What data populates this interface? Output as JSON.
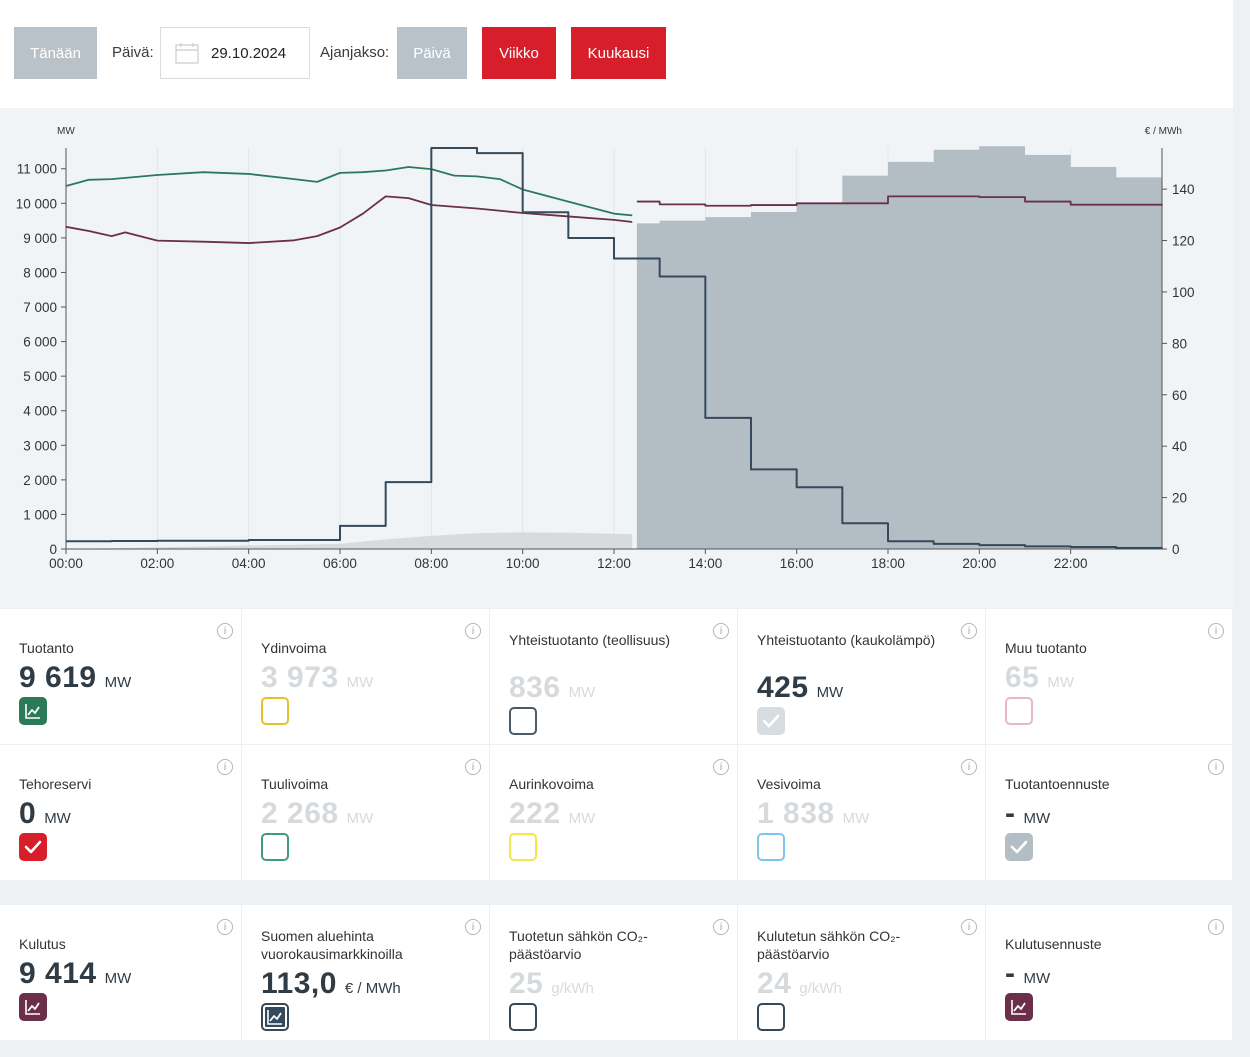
{
  "toolbar": {
    "today_label": "Tänään",
    "day_label": "Päivä:",
    "date_value": "29.10.2024",
    "period_label": "Ajanjakso:",
    "period_day": "Päivä",
    "period_week": "Viikko",
    "period_month": "Kuukausi"
  },
  "chart_data": {
    "type": "line",
    "left_unit": "MW",
    "right_unit": "€ / MWh",
    "x_ticks": [
      "00:00",
      "02:00",
      "04:00",
      "06:00",
      "08:00",
      "10:00",
      "12:00",
      "14:00",
      "16:00",
      "18:00",
      "20:00",
      "22:00"
    ],
    "y_left_ticks": [
      "0",
      "1 000",
      "2 000",
      "3 000",
      "4 000",
      "5 000",
      "6 000",
      "7 000",
      "8 000",
      "9 000",
      "10 000",
      "11 000"
    ],
    "y_right_ticks": [
      "0",
      "20",
      "40",
      "60",
      "80",
      "100",
      "120",
      "140"
    ],
    "y_left_range": [
      0,
      11600
    ],
    "y_right_range": [
      0,
      156
    ],
    "colors": {
      "production": "#2a7a5a",
      "consumption": "#6b2f4a",
      "price": "#34495a",
      "forecast_fill": "#b3bdc4",
      "solar_fill": "#d7dbde"
    },
    "series": [
      {
        "name": "Tuotanto",
        "unit": "MW",
        "values": [
          [
            0,
            10500
          ],
          [
            0.5,
            10680
          ],
          [
            1,
            10700
          ],
          [
            2,
            10820
          ],
          [
            3,
            10900
          ],
          [
            4,
            10850
          ],
          [
            5,
            10700
          ],
          [
            5.5,
            10620
          ],
          [
            6,
            10880
          ],
          [
            6.5,
            10900
          ],
          [
            7,
            10950
          ],
          [
            7.5,
            11050
          ],
          [
            8,
            10990
          ],
          [
            8.5,
            10800
          ],
          [
            9,
            10780
          ],
          [
            9.5,
            10700
          ],
          [
            10,
            10400
          ],
          [
            11,
            10050
          ],
          [
            12,
            9700
          ],
          [
            12.4,
            9650
          ]
        ]
      },
      {
        "name": "Kulutus",
        "unit": "MW",
        "values": [
          [
            0,
            9320
          ],
          [
            0.5,
            9200
          ],
          [
            1,
            9050
          ],
          [
            1.3,
            9160
          ],
          [
            2,
            8920
          ],
          [
            3,
            8890
          ],
          [
            4,
            8850
          ],
          [
            5,
            8930
          ],
          [
            5.5,
            9050
          ],
          [
            6,
            9300
          ],
          [
            6.5,
            9700
          ],
          [
            7,
            10200
          ],
          [
            7.5,
            10150
          ],
          [
            8,
            9950
          ],
          [
            9,
            9850
          ],
          [
            10,
            9720
          ],
          [
            11,
            9620
          ],
          [
            12,
            9520
          ],
          [
            12.4,
            9460
          ]
        ]
      },
      {
        "name": "Kulutusennuste",
        "unit": "MW",
        "values": [
          [
            12.5,
            10050
          ],
          [
            13,
            9970
          ],
          [
            14,
            9930
          ],
          [
            15,
            9950
          ],
          [
            16,
            10000
          ],
          [
            17,
            10000
          ],
          [
            18,
            10200
          ],
          [
            20,
            10180
          ],
          [
            21,
            10050
          ],
          [
            22,
            9960
          ],
          [
            24,
            9970
          ]
        ]
      },
      {
        "name": "Tuotantoennuste",
        "unit": "MW",
        "values": [
          [
            12.5,
            9420
          ],
          [
            13,
            9500
          ],
          [
            14,
            9600
          ],
          [
            15,
            9750
          ],
          [
            16,
            10000
          ],
          [
            17,
            10800
          ],
          [
            18,
            11200
          ],
          [
            19,
            11550
          ],
          [
            20,
            11650
          ],
          [
            21,
            11400
          ],
          [
            22,
            11050
          ],
          [
            23,
            10750
          ],
          [
            24,
            10750
          ]
        ]
      },
      {
        "name": "Aurinkovoima",
        "unit": "MW",
        "values": [
          [
            0,
            0
          ],
          [
            6,
            150
          ],
          [
            7,
            280
          ],
          [
            8,
            380
          ],
          [
            9,
            460
          ],
          [
            10,
            480
          ],
          [
            11,
            470
          ],
          [
            12,
            440
          ],
          [
            12.4,
            430
          ]
        ]
      },
      {
        "name": "Suomen aluehinta",
        "unit": "€ / MWh",
        "values": [
          [
            0,
            3
          ],
          [
            1,
            3.1
          ],
          [
            2,
            3.2
          ],
          [
            4,
            3.5
          ],
          [
            5,
            3.5
          ],
          [
            6,
            9
          ],
          [
            7,
            26
          ],
          [
            8,
            156
          ],
          [
            9,
            154
          ],
          [
            10,
            131
          ],
          [
            11,
            121
          ],
          [
            12,
            113
          ],
          [
            13,
            106
          ],
          [
            14,
            51
          ],
          [
            15,
            31
          ],
          [
            16,
            24
          ],
          [
            17,
            10
          ],
          [
            18,
            3
          ],
          [
            19,
            2
          ],
          [
            20,
            1.5
          ],
          [
            21,
            1
          ],
          [
            22,
            0.8
          ],
          [
            23,
            0.4
          ],
          [
            24,
            0.3
          ]
        ]
      }
    ]
  },
  "production_cards": [
    {
      "label": "Tuotanto",
      "value": "9 619",
      "unit": "MW",
      "active": true,
      "color": "#2a7a5a",
      "icon": "chart-line-icon"
    },
    {
      "label": "Ydinvoima",
      "value": "3 973",
      "unit": "MW",
      "active": false,
      "color": "#e2c42a",
      "icon": ""
    },
    {
      "label": "Yhteistuotanto (teollisuus)",
      "value": "836",
      "unit": "MW",
      "active": false,
      "color": "#4c5a66",
      "icon": ""
    },
    {
      "label": "Yhteistuotanto (kaukolämpö)",
      "value": "425",
      "unit": "MW",
      "active": true,
      "color": "#d7dce0",
      "icon": "check-icon"
    },
    {
      "label": "Muu tuotanto",
      "value": "65",
      "unit": "MW",
      "active": false,
      "color": "#e8b9c4",
      "icon": ""
    },
    {
      "label": "Tehoreservi",
      "value": "0",
      "unit": "MW",
      "active": true,
      "color": "#d71f2c",
      "icon": "check-icon"
    },
    {
      "label": "Tuulivoima",
      "value": "2 268",
      "unit": "MW",
      "active": false,
      "color": "#3f9a83",
      "icon": ""
    },
    {
      "label": "Aurinkovoima",
      "value": "222",
      "unit": "MW",
      "active": false,
      "color": "#f2e84a",
      "icon": ""
    },
    {
      "label": "Vesivoima",
      "value": "1 838",
      "unit": "MW",
      "active": false,
      "color": "#7cc6ee",
      "icon": ""
    },
    {
      "label": "Tuotantoennuste",
      "value": "-",
      "unit": "MW",
      "active": true,
      "color": "#b3bdc4",
      "icon": "check-icon"
    }
  ],
  "consumption_cards": [
    {
      "label": "Kulutus",
      "value": "9 414",
      "unit": "MW",
      "active": true,
      "color": "#6b2f4a",
      "icon": "chart-line-icon"
    },
    {
      "label": "Suomen aluehinta vuorokausimarkkinoilla",
      "value": "113,0",
      "unit": "€ / MWh",
      "active": true,
      "color": "#34495a",
      "icon": "chart-line-icon"
    },
    {
      "label": "Tuotetun sähkön CO₂-päästöarvio",
      "value": "25",
      "unit": "g/kWh",
      "active": false,
      "color": "#34495a",
      "icon": ""
    },
    {
      "label": "Kulutetun sähkön CO₂-päästöarvio",
      "value": "24",
      "unit": "g/kWh",
      "active": false,
      "color": "#34495a",
      "icon": ""
    },
    {
      "label": "Kulutusennuste",
      "value": "-",
      "unit": "MW",
      "active": true,
      "color": "#6b2f4a",
      "icon": "chart-line-icon"
    }
  ]
}
